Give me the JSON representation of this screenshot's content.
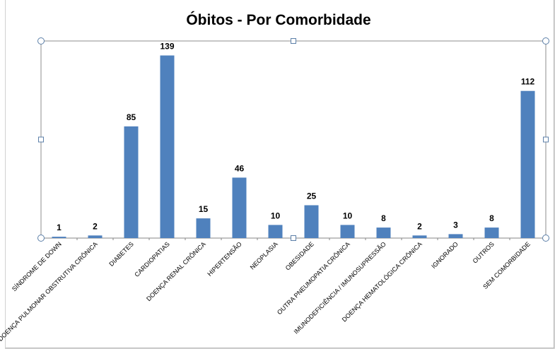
{
  "chart_data": {
    "type": "bar",
    "title": "Óbitos - Por Comorbidade",
    "xlabel": "",
    "ylabel": "",
    "ylim": [
      0,
      150
    ],
    "grid": false,
    "legend": "none",
    "bar_color": "#4f81bd",
    "categories": [
      "SÍNDROME DE DOWN",
      "DOENÇA PULMONAR OBSTRUTIVA CRÔNICA",
      "DIABETES",
      "CARDIOPATIAS",
      "DOENÇA RENAL CRÔNICA",
      "HIPERTENSÃO",
      "NEOPLASIA",
      "OBESIDADE",
      "OUTRA PNEUMOPATIA CRÔNICA",
      "IMUNODEFICIÊNCIA / IMUNOSUPRESSÃO",
      "DOENÇA HEMATOLÓGICA CRÔNICA",
      "IGNORADO",
      "OUTROS",
      "SEM COMORBIDADE"
    ],
    "values": [
      1,
      2,
      85,
      139,
      15,
      46,
      10,
      25,
      10,
      8,
      2,
      3,
      8,
      112
    ]
  }
}
